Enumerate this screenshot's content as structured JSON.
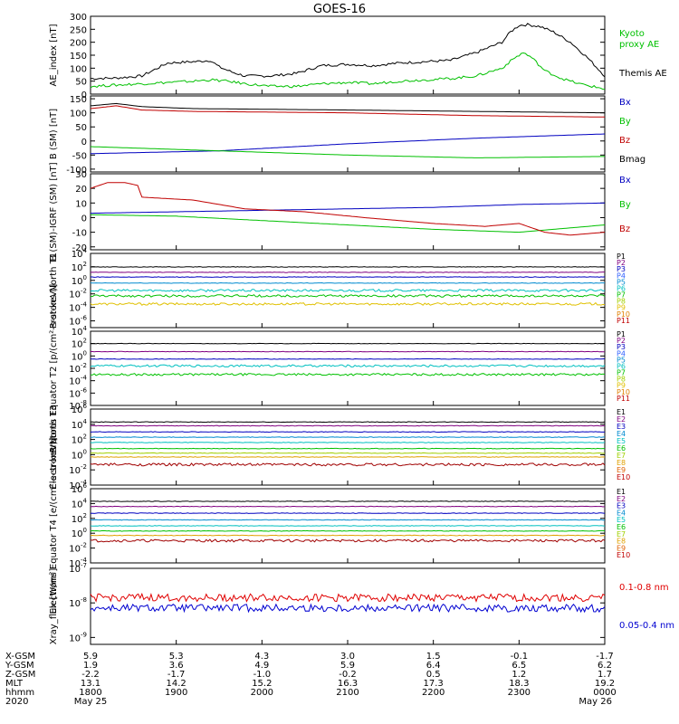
{
  "title": "GOES-16",
  "chart_data": [
    {
      "id": "ae",
      "type": "line",
      "ylabel": "AE_index [nT]",
      "yticks": [
        0,
        50,
        100,
        150,
        200,
        250,
        300
      ],
      "ylim": [
        0,
        300
      ],
      "scale": "linear",
      "series": [
        {
          "name": "Themis AE",
          "color": "#000000",
          "x": [
            0,
            0.3,
            0.6,
            0.9,
            1.2,
            1.4,
            1.5,
            1.65,
            1.8,
            2.1,
            2.4,
            2.7,
            3.0,
            3.3,
            3.6,
            3.9,
            4.2,
            4.5,
            4.8,
            4.9,
            5.0,
            5.1,
            5.25,
            5.4,
            5.6,
            5.8,
            6.0
          ],
          "y": [
            60,
            62,
            70,
            120,
            125,
            130,
            105,
            85,
            70,
            70,
            80,
            110,
            115,
            110,
            120,
            125,
            130,
            160,
            200,
            240,
            265,
            268,
            260,
            240,
            200,
            140,
            70
          ]
        },
        {
          "name": "Kyoto proxy AE",
          "color": "#00c000",
          "x": [
            0,
            0.3,
            0.6,
            0.9,
            1.2,
            1.4,
            1.6,
            1.8,
            2.1,
            2.4,
            2.7,
            3.0,
            3.3,
            3.6,
            3.9,
            4.2,
            4.5,
            4.8,
            4.95,
            5.05,
            5.15,
            5.3,
            5.5,
            5.7,
            6.0
          ],
          "y": [
            30,
            35,
            40,
            45,
            50,
            55,
            50,
            40,
            30,
            30,
            40,
            45,
            40,
            50,
            55,
            60,
            70,
            100,
            140,
            160,
            140,
            90,
            60,
            40,
            20
          ]
        }
      ]
    },
    {
      "id": "bsm",
      "type": "line",
      "ylabel": "B (SM) [nT]",
      "yticks": [
        -100,
        -50,
        0,
        50,
        100,
        150
      ],
      "ylim": [
        -110,
        160
      ],
      "scale": "linear",
      "series": [
        {
          "name": "Bx",
          "color": "#0000c0",
          "x": [
            0,
            1.5,
            3,
            4.5,
            6
          ],
          "y": [
            -45,
            -35,
            -10,
            10,
            25
          ]
        },
        {
          "name": "By",
          "color": "#00c000",
          "x": [
            0,
            1.5,
            3,
            4.5,
            6
          ],
          "y": [
            -20,
            -35,
            -50,
            -60,
            -55
          ]
        },
        {
          "name": "Bz",
          "color": "#c00000",
          "x": [
            0,
            0.3,
            0.6,
            1.2,
            3,
            4.5,
            6
          ],
          "y": [
            115,
            125,
            110,
            105,
            100,
            90,
            85
          ]
        },
        {
          "name": "Bmag",
          "color": "#000000",
          "x": [
            0,
            0.3,
            0.6,
            1.2,
            3,
            4.5,
            6
          ],
          "y": [
            125,
            133,
            122,
            115,
            110,
            105,
            100
          ]
        }
      ]
    },
    {
      "id": "bigrf",
      "type": "line",
      "ylabel": "B (SM)-IGRF (SM) [nT]",
      "yticks": [
        -20,
        -10,
        0,
        10,
        20,
        30
      ],
      "ylim": [
        -22,
        30
      ],
      "scale": "linear",
      "series": [
        {
          "name": "Bx",
          "color": "#0000c0",
          "x": [
            0,
            1,
            2,
            3,
            4,
            5,
            6
          ],
          "y": [
            3,
            4,
            5,
            6,
            7,
            9,
            10
          ]
        },
        {
          "name": "By",
          "color": "#00c000",
          "x": [
            0,
            1,
            2,
            3,
            4,
            5,
            6
          ],
          "y": [
            2,
            1,
            -2,
            -5,
            -8,
            -10,
            -5
          ]
        },
        {
          "name": "Bz",
          "color": "#c00000",
          "x": [
            0,
            0.2,
            0.4,
            0.55,
            0.6,
            1.2,
            1.8,
            2.5,
            3.2,
            4.0,
            4.6,
            5.0,
            5.3,
            5.6,
            6.0
          ],
          "y": [
            20,
            24,
            24,
            22,
            14,
            12,
            6,
            4,
            0,
            -4,
            -6,
            -4,
            -10,
            -12,
            -10
          ]
        }
      ]
    },
    {
      "id": "p1",
      "type": "line",
      "ylabel": "Protons North T1",
      "yticks": [
        "10^-6",
        "10^-4",
        "10^-2",
        "10^0",
        "10^2",
        "10^4"
      ],
      "ylim": [
        -7,
        4
      ],
      "scale": "log",
      "legend": [
        "P1",
        "P2",
        "P3",
        "P4",
        "P5",
        "P6",
        "P7",
        "P8",
        "P9",
        "P10",
        "P11"
      ],
      "series": [
        {
          "name": "P1",
          "color": "#000000",
          "level": 2.0
        },
        {
          "name": "P2",
          "color": "#800080",
          "level": 1.2
        },
        {
          "name": "P3",
          "color": "#0000c0",
          "level": 0.5
        },
        {
          "name": "P5",
          "color": "#008ad0",
          "level": -0.4
        },
        {
          "name": "P6",
          "color": "#00c0c0",
          "level": -1.5
        },
        {
          "name": "P7",
          "color": "#00c000",
          "level": -2.3
        },
        {
          "name": "P8",
          "color": "#e0c000",
          "level": -3.5
        }
      ]
    },
    {
      "id": "p2",
      "type": "line",
      "ylabel": "Protons Equator T2 [p/(cm²-s-sr-keV)]",
      "yticks": [
        "10^-8",
        "10^-6",
        "10^-4",
        "10^-2",
        "10^0",
        "10^2",
        "10^4"
      ],
      "ylim": [
        -8,
        4
      ],
      "scale": "log",
      "legend": [
        "P1",
        "P2",
        "P3",
        "P4",
        "P5",
        "P6",
        "P7",
        "P8",
        "P9",
        "P10",
        "P11"
      ],
      "series": [
        {
          "name": "P1",
          "color": "#000000",
          "level": 2.0
        },
        {
          "name": "P2",
          "color": "#800080",
          "level": 0.7
        },
        {
          "name": "P3",
          "color": "#0000c0",
          "level": -0.5
        },
        {
          "name": "P5",
          "color": "#00c0c0",
          "level": -1.6
        },
        {
          "name": "P6",
          "color": "#00c000",
          "level": -3.0
        }
      ]
    },
    {
      "id": "e1",
      "type": "line",
      "ylabel": "Electrons North T3",
      "yticks": [
        "10^-4",
        "10^-2",
        "10^0",
        "10^2",
        "10^4",
        "10^6"
      ],
      "ylim": [
        -4,
        6
      ],
      "scale": "log",
      "legend": [
        "E1",
        "E2",
        "E3",
        "E4",
        "E5",
        "E6",
        "E7",
        "E8",
        "E9",
        "E10"
      ],
      "series": [
        {
          "name": "E1",
          "color": "#000000",
          "level": 4.3
        },
        {
          "name": "E2",
          "color": "#800080",
          "level": 3.8
        },
        {
          "name": "E3",
          "color": "#0000c0",
          "level": 3.0
        },
        {
          "name": "E4",
          "color": "#008ad0",
          "level": 2.3
        },
        {
          "name": "E5",
          "color": "#00c0c0",
          "level": 1.6
        },
        {
          "name": "E6",
          "color": "#00c000",
          "level": 0.8
        },
        {
          "name": "E7",
          "color": "#a0d000",
          "level": 0.2
        },
        {
          "name": "E8",
          "color": "#e0a000",
          "level": -0.3
        },
        {
          "name": "E10",
          "color": "#a00000",
          "level": -1.3
        }
      ]
    },
    {
      "id": "e2",
      "type": "line",
      "ylabel": "Electrons Equator T4 [e/(cm²-s-sr-keV)]",
      "yticks": [
        "10^-4",
        "10^-2",
        "10^0",
        "10^2",
        "10^4",
        "10^6"
      ],
      "ylim": [
        -4,
        6
      ],
      "scale": "log",
      "legend": [
        "E1",
        "E2",
        "E3",
        "E4",
        "E5",
        "E6",
        "E7",
        "E8",
        "E9",
        "E10"
      ],
      "series": [
        {
          "name": "E1",
          "color": "#000000",
          "level": 4.3
        },
        {
          "name": "E2",
          "color": "#800080",
          "level": 3.6
        },
        {
          "name": "E3",
          "color": "#0000c0",
          "level": 2.7
        },
        {
          "name": "E4",
          "color": "#008ad0",
          "level": 1.8
        },
        {
          "name": "E5",
          "color": "#00c0c0",
          "level": 1.0
        },
        {
          "name": "E6",
          "color": "#00c000",
          "level": 0.3
        },
        {
          "name": "E7",
          "color": "#e0a000",
          "level": -0.3
        },
        {
          "name": "E8",
          "color": "#a00000",
          "level": -1.0
        }
      ]
    },
    {
      "id": "xray",
      "type": "line",
      "ylabel": "Xray_flux [W/m²]",
      "yticks": [
        "10^-9",
        "10^-8",
        "10^-7"
      ],
      "ylim": [
        -9.2,
        -7
      ],
      "scale": "log",
      "series": [
        {
          "name": "0.1-0.8 nm",
          "color": "#e00000",
          "level": -7.85
        },
        {
          "name": "0.05-0.4 nm",
          "color": "#0000d0",
          "level": -8.15
        }
      ]
    }
  ],
  "bottom_axis": {
    "rows": [
      {
        "label": "X-GSM",
        "values": [
          "5.9",
          "5.3",
          "4.3",
          "3.0",
          "1.5",
          "-0.1",
          "-1.7"
        ]
      },
      {
        "label": "Y-GSM",
        "values": [
          "1.9",
          "3.6",
          "4.9",
          "5.9",
          "6.4",
          "6.5",
          "6.2"
        ]
      },
      {
        "label": "Z-GSM",
        "values": [
          "-2.2",
          "-1.7",
          "-1.0",
          "-0.2",
          "0.5",
          "1.2",
          "1.7"
        ]
      },
      {
        "label": "MLT",
        "values": [
          "13.1",
          "14.2",
          "15.2",
          "16.3",
          "17.3",
          "18.3",
          "19.2"
        ]
      },
      {
        "label": "hhmm",
        "values": [
          "1800",
          "1900",
          "2000",
          "2100",
          "2200",
          "2300",
          "0000"
        ]
      },
      {
        "label": "2020",
        "values": [
          "May 25",
          "",
          "",
          "",
          "",
          "",
          "May 26"
        ]
      }
    ]
  },
  "legends": {
    "ae": [
      {
        "text": "Kyoto",
        "color": "#00c000"
      },
      {
        "text": "proxy AE",
        "color": "#00c000"
      },
      {
        "text": "Themis AE",
        "color": "#000000"
      }
    ],
    "bsm": [
      {
        "text": "Bx",
        "color": "#0000c0"
      },
      {
        "text": "By",
        "color": "#00c000"
      },
      {
        "text": "Bz",
        "color": "#c00000"
      },
      {
        "text": "Bmag",
        "color": "#000000"
      }
    ],
    "bigrf": [
      {
        "text": "Bx",
        "color": "#0000c0"
      },
      {
        "text": "By",
        "color": "#00c000"
      },
      {
        "text": "Bz",
        "color": "#c00000"
      }
    ],
    "xray": [
      {
        "text": "0.1-0.8 nm",
        "color": "#e00000"
      },
      {
        "text": "0.05-0.4 nm",
        "color": "#0000d0"
      }
    ]
  },
  "colors": {
    "P": [
      "#000000",
      "#800080",
      "#0000c0",
      "#3060ff",
      "#008ad0",
      "#00c0c0",
      "#00c000",
      "#a0d000",
      "#e0c000",
      "#e08000",
      "#c00000"
    ],
    "E": [
      "#000000",
      "#800080",
      "#0000c0",
      "#008ad0",
      "#00c0c0",
      "#00c000",
      "#a0d000",
      "#e0a000",
      "#e06000",
      "#c00000"
    ]
  }
}
